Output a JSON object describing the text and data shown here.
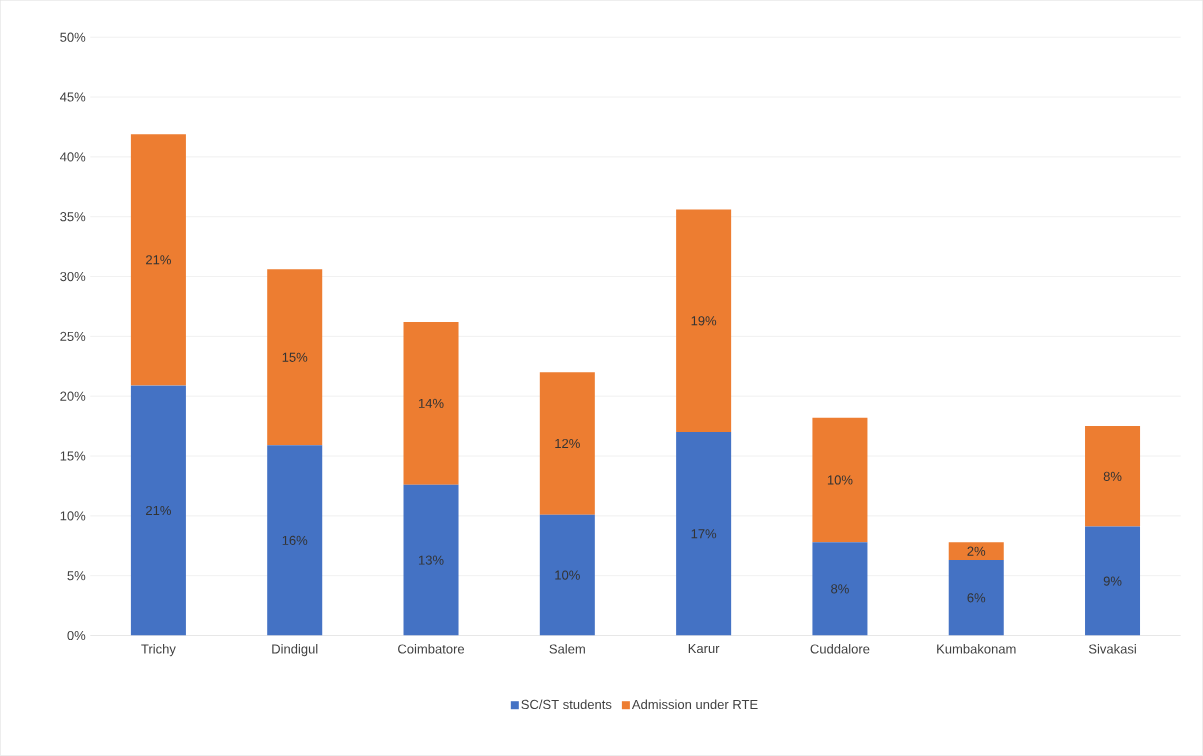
{
  "chart_data": {
    "type": "bar",
    "stacked": true,
    "categories": [
      "Trichy",
      "Dindigul",
      "Coimbatore",
      "Salem",
      "Karur",
      "Cuddalore",
      "Kumbakonam",
      "Sivakasi"
    ],
    "series": [
      {
        "name": "SC/ST students",
        "color": "#4472c4",
        "values": [
          20.9,
          15.9,
          12.6,
          10.1,
          17.0,
          7.8,
          6.3,
          9.1
        ],
        "value_labels": [
          "21%",
          "16%",
          "13%",
          "10%",
          "17%",
          "8%",
          "6%",
          "9%"
        ]
      },
      {
        "name": "Admission under RTE",
        "color": "#ed7d31",
        "values": [
          21.0,
          14.7,
          13.6,
          11.9,
          18.6,
          10.4,
          1.5,
          8.4
        ],
        "value_labels": [
          "21%",
          "15%",
          "14%",
          "12%",
          "19%",
          "10%",
          "2%",
          "8%"
        ]
      }
    ],
    "ylim": [
      0,
      50
    ],
    "yticks": [
      {
        "value": 0,
        "label": "0%"
      },
      {
        "value": 5,
        "label": "5%"
      },
      {
        "value": 10,
        "label": "10%"
      },
      {
        "value": 15,
        "label": "15%"
      },
      {
        "value": 20,
        "label": "20%"
      },
      {
        "value": 25,
        "label": "25%"
      },
      {
        "value": 30,
        "label": "30%"
      },
      {
        "value": 35,
        "label": "35%"
      },
      {
        "value": 40,
        "label": "40%"
      },
      {
        "value": 45,
        "label": "45%"
      },
      {
        "value": 50,
        "label": "50%"
      }
    ],
    "grid": "y",
    "legend": "bottom"
  }
}
